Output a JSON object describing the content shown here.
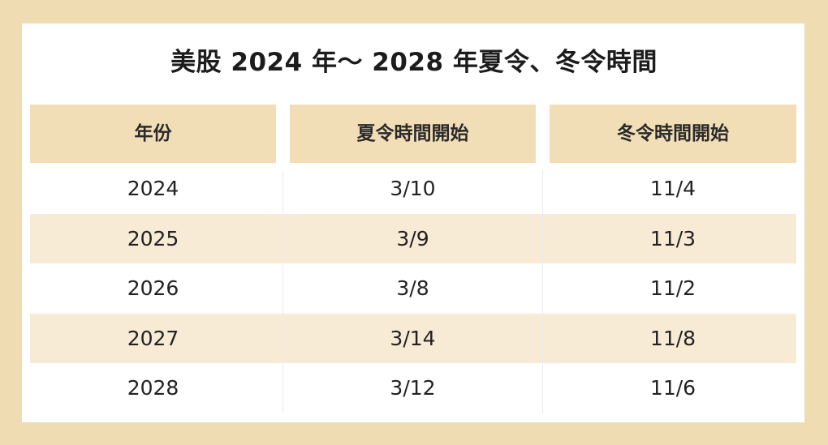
{
  "title": "美股 2024 年～ 2028 年夏令、冬令時間",
  "headers": {
    "year": "年份",
    "dst_start": "夏令時間開始",
    "std_start": "冬令時間開始"
  },
  "rows": [
    {
      "year": "2024",
      "dst_start": "3/10",
      "std_start": "11/4"
    },
    {
      "year": "2025",
      "dst_start": "3/9",
      "std_start": "11/3"
    },
    {
      "year": "2026",
      "dst_start": "3/8",
      "std_start": "11/2"
    },
    {
      "year": "2027",
      "dst_start": "3/14",
      "std_start": "11/8"
    },
    {
      "year": "2028",
      "dst_start": "3/12",
      "std_start": "11/6"
    }
  ],
  "colors": {
    "background": "#efdcb3",
    "header_fill": "#f2deb6",
    "alt_row_fill": "#f8ebd6",
    "card": "#ffffff"
  }
}
